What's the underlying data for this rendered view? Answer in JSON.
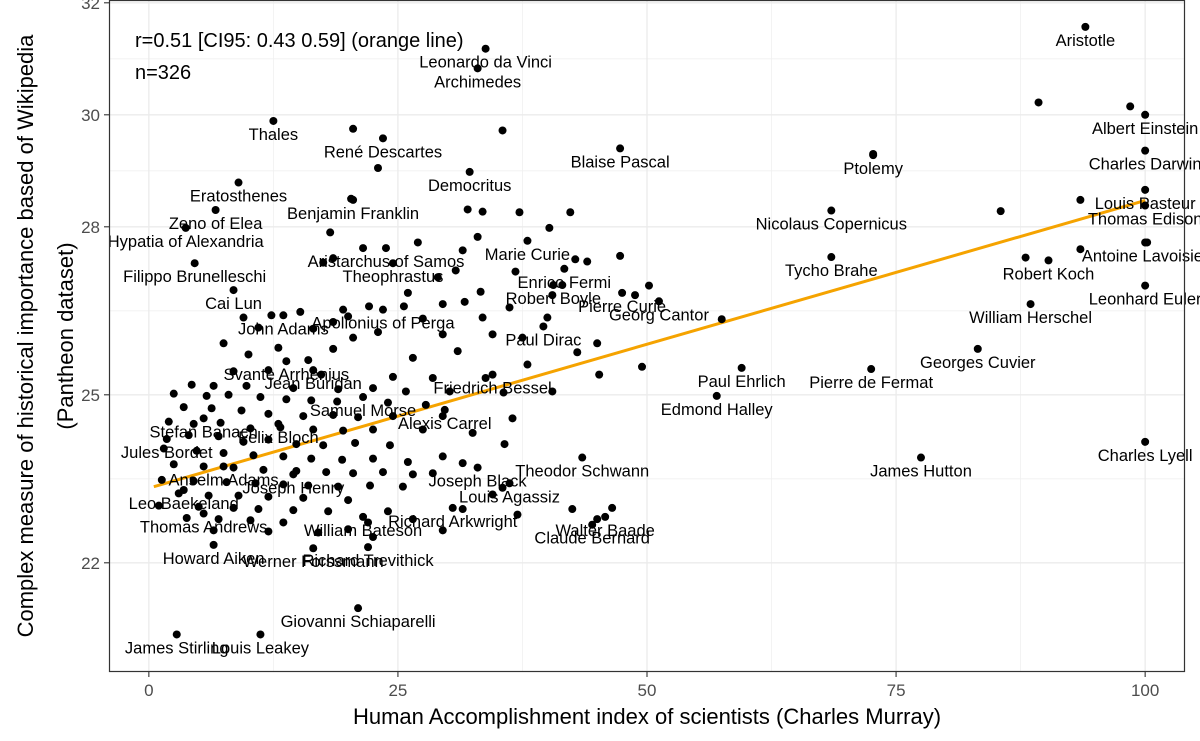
{
  "chart_data": {
    "type": "scatter",
    "title": "",
    "xlabel": "Human Accomplishment index of scientists (Charles Murray)",
    "ylabel": "Complex measure of historical importance based of Wikipedia (Pantheon dataset)",
    "ylabel_line1": "Complex measure of historical importance based of Wikipedia",
    "ylabel_line2": "(Pantheon dataset)",
    "xlim": [
      -4,
      104
    ],
    "ylim": [
      20.05,
      32.05
    ],
    "x_ticks": [
      0,
      25,
      50,
      75,
      100
    ],
    "x_tick_labels": [
      "0",
      "25",
      "50",
      "75",
      "100"
    ],
    "y_ticks": [
      22,
      25,
      28,
      30,
      32
    ],
    "y_tick_labels": [
      "22",
      "25",
      "28",
      "30",
      "32"
    ],
    "annotations": [
      "r=0.51 [CI95: 0.43 0.59] (orange line)",
      "n=326"
    ],
    "regression_line": {
      "color": "#f5a300",
      "x": [
        0.5,
        100
      ],
      "y": [
        23.36,
        28.47
      ]
    },
    "labeled_points": [
      {
        "label": "Aristotle",
        "x": 94,
        "y": 31.57
      },
      {
        "label": "Leonardo da Vinci",
        "x": 33.8,
        "y": 31.18
      },
      {
        "label": "Archimedes",
        "x": 33.0,
        "y": 30.83
      },
      {
        "label": "Albert Einstein",
        "x": 100,
        "y": 30.0
      },
      {
        "label": "Thales",
        "x": 12.5,
        "y": 29.89
      },
      {
        "label": "René Descartes",
        "x": 23.5,
        "y": 29.58
      },
      {
        "label": "Blaise Pascal",
        "x": 47.3,
        "y": 29.4
      },
      {
        "label": "Charles Darwin",
        "x": 100,
        "y": 29.36
      },
      {
        "label": "Ptolemy",
        "x": 72.7,
        "y": 29.28
      },
      {
        "label": "Democritus",
        "x": 32.2,
        "y": 28.98
      },
      {
        "label": "Eratosthenes",
        "x": 9.0,
        "y": 28.79
      },
      {
        "label": "Louis Pasteur",
        "x": 100,
        "y": 28.66
      },
      {
        "label": "Benjamin Franklin",
        "x": 20.5,
        "y": 28.48
      },
      {
        "label": "Nicolaus Copernicus",
        "x": 68.5,
        "y": 28.29
      },
      {
        "label": "Thomas Edison",
        "x": 100,
        "y": 28.38
      },
      {
        "label": "Zeno of Elea",
        "x": 6.7,
        "y": 28.3
      },
      {
        "label": "Marie Curie",
        "x": 38.0,
        "y": 27.75
      },
      {
        "label": "Hypatia of Alexandria",
        "x": 3.7,
        "y": 27.98
      },
      {
        "label": "Aristarchus of Samos",
        "x": 23.8,
        "y": 27.62
      },
      {
        "label": "Antoine Lavoisier",
        "x": 100,
        "y": 27.72
      },
      {
        "label": "Tycho Brahe",
        "x": 68.5,
        "y": 27.46
      },
      {
        "label": "Filippo Brunelleschi",
        "x": 4.6,
        "y": 27.35
      },
      {
        "label": "Theophrastus",
        "x": 24.5,
        "y": 27.35
      },
      {
        "label": "Enrico Fermi",
        "x": 41.7,
        "y": 27.25
      },
      {
        "label": "Robert Koch",
        "x": 90.3,
        "y": 27.4
      },
      {
        "label": "Robert Boyle",
        "x": 40.6,
        "y": 26.96
      },
      {
        "label": "Leonhard Euler",
        "x": 100,
        "y": 26.95
      },
      {
        "label": "Cai Lun",
        "x": 8.5,
        "y": 26.87
      },
      {
        "label": "Pierre Curie",
        "x": 47.5,
        "y": 26.82
      },
      {
        "label": "Apollonius of Perga",
        "x": 23.5,
        "y": 26.52
      },
      {
        "label": "William Herschel",
        "x": 88.5,
        "y": 26.62
      },
      {
        "label": "Georg Cantor",
        "x": 51.2,
        "y": 26.67
      },
      {
        "label": "John Adams",
        "x": 13.5,
        "y": 26.42
      },
      {
        "label": "Paul Dirac",
        "x": 39.6,
        "y": 26.22
      },
      {
        "label": "Georges Cuvier",
        "x": 83.2,
        "y": 25.82
      },
      {
        "label": "Svante Arrhenius",
        "x": 13.8,
        "y": 25.6
      },
      {
        "label": "Jean Buridan",
        "x": 16.5,
        "y": 25.44
      },
      {
        "label": "Friedrich Bessel",
        "x": 34.5,
        "y": 25.36
      },
      {
        "label": "Paul Ehrlich",
        "x": 59.5,
        "y": 25.48
      },
      {
        "label": "Pierre de Fermat",
        "x": 72.5,
        "y": 25.46
      },
      {
        "label": "Samuel Morse",
        "x": 21.5,
        "y": 24.96
      },
      {
        "label": "Stefan Banach",
        "x": 5.5,
        "y": 24.58
      },
      {
        "label": "Alexis Carrel",
        "x": 29.7,
        "y": 24.73
      },
      {
        "label": "Edmond Halley",
        "x": 57.0,
        "y": 24.98
      },
      {
        "label": "Felix Bloch",
        "x": 13.0,
        "y": 24.48
      },
      {
        "label": "Jules Bordet",
        "x": 1.8,
        "y": 24.21
      },
      {
        "label": "Charles Lyell",
        "x": 100,
        "y": 24.16
      },
      {
        "label": "James Hutton",
        "x": 77.5,
        "y": 23.88
      },
      {
        "label": "Theodor Schwann",
        "x": 43.5,
        "y": 23.88
      },
      {
        "label": "Joseph Black",
        "x": 33.0,
        "y": 23.7
      },
      {
        "label": "Anselm Adams",
        "x": 7.5,
        "y": 23.72
      },
      {
        "label": "Joseph Henry",
        "x": 14.5,
        "y": 23.58
      },
      {
        "label": "Louis Agassiz",
        "x": 36.2,
        "y": 23.42
      },
      {
        "label": "Leo Baekeland",
        "x": 3.5,
        "y": 23.3
      },
      {
        "label": "Richard Arkwright",
        "x": 30.5,
        "y": 22.98
      },
      {
        "label": "Thomas Andrews",
        "x": 5.5,
        "y": 22.88
      },
      {
        "label": "William Bateson",
        "x": 21.5,
        "y": 22.82
      },
      {
        "label": "Walter Baade",
        "x": 45.8,
        "y": 22.82
      },
      {
        "label": "Howard Aiken",
        "x": 6.5,
        "y": 22.32
      },
      {
        "label": "Claude Bernard",
        "x": 44.5,
        "y": 22.68
      },
      {
        "label": "Richard Trevithick",
        "x": 22.0,
        "y": 22.28
      },
      {
        "label": "Werner Forssmann",
        "x": 16.5,
        "y": 22.26
      },
      {
        "label": "Giovanni Schiaparelli",
        "x": 21.0,
        "y": 21.19
      },
      {
        "label": "James Stirling",
        "x": 2.8,
        "y": 20.72
      },
      {
        "label": "Louis Leakey",
        "x": 11.2,
        "y": 20.72
      }
    ],
    "unlabeled_points": [
      [
        89.3,
        30.22
      ],
      [
        98.5,
        30.15
      ],
      [
        72.7,
        29.3
      ],
      [
        85.5,
        28.28
      ],
      [
        93.5,
        28.48
      ],
      [
        93.5,
        27.6
      ],
      [
        100.2,
        27.72
      ],
      [
        88.0,
        27.45
      ],
      [
        57.5,
        26.35
      ],
      [
        50.2,
        26.95
      ],
      [
        35.5,
        29.72
      ],
      [
        20.5,
        29.75
      ],
      [
        23.0,
        29.05
      ],
      [
        20.3,
        28.5
      ],
      [
        32.0,
        28.31
      ],
      [
        33.5,
        28.27
      ],
      [
        37.2,
        28.26
      ],
      [
        42.3,
        28.26
      ],
      [
        40.2,
        27.98
      ],
      [
        33.0,
        27.82
      ],
      [
        27.0,
        27.72
      ],
      [
        47.3,
        27.48
      ],
      [
        42.8,
        27.42
      ],
      [
        18.2,
        27.9
      ],
      [
        21.5,
        27.62
      ],
      [
        31.5,
        27.58
      ],
      [
        18.5,
        27.44
      ],
      [
        17.5,
        27.36
      ],
      [
        44.0,
        27.38
      ],
      [
        30.8,
        27.22
      ],
      [
        36.8,
        27.2
      ],
      [
        29.0,
        27.1
      ],
      [
        41.5,
        26.96
      ],
      [
        33.3,
        26.84
      ],
      [
        26.0,
        26.82
      ],
      [
        40.5,
        26.78
      ],
      [
        48.8,
        26.78
      ],
      [
        29.5,
        26.62
      ],
      [
        31.7,
        26.66
      ],
      [
        36.2,
        26.56
      ],
      [
        25.6,
        26.58
      ],
      [
        22.1,
        26.58
      ],
      [
        19.5,
        26.52
      ],
      [
        15.2,
        26.48
      ],
      [
        20.0,
        26.4
      ],
      [
        12.3,
        26.42
      ],
      [
        18.5,
        26.3
      ],
      [
        9.5,
        26.38
      ],
      [
        27.5,
        26.36
      ],
      [
        33.5,
        26.38
      ],
      [
        40.0,
        26.38
      ],
      [
        11.0,
        26.2
      ],
      [
        16.5,
        26.18
      ],
      [
        20.5,
        26.02
      ],
      [
        23.0,
        26.12
      ],
      [
        29.5,
        26.08
      ],
      [
        34.5,
        26.08
      ],
      [
        37.5,
        26.02
      ],
      [
        45.0,
        25.92
      ],
      [
        7.5,
        25.92
      ],
      [
        13.0,
        25.84
      ],
      [
        18.5,
        25.82
      ],
      [
        31.0,
        25.78
      ],
      [
        43.0,
        25.76
      ],
      [
        10.0,
        25.72
      ],
      [
        16.0,
        25.62
      ],
      [
        26.5,
        25.66
      ],
      [
        38.0,
        25.54
      ],
      [
        49.5,
        25.5
      ],
      [
        8.5,
        25.42
      ],
      [
        12.0,
        25.44
      ],
      [
        17.3,
        25.36
      ],
      [
        24.5,
        25.32
      ],
      [
        28.5,
        25.3
      ],
      [
        33.8,
        25.3
      ],
      [
        45.2,
        25.36
      ],
      [
        4.3,
        25.18
      ],
      [
        6.5,
        25.16
      ],
      [
        9.8,
        25.16
      ],
      [
        14.5,
        25.12
      ],
      [
        19.0,
        25.1
      ],
      [
        22.5,
        25.12
      ],
      [
        25.8,
        25.06
      ],
      [
        30.2,
        25.06
      ],
      [
        35.6,
        25.04
      ],
      [
        40.5,
        25.06
      ],
      [
        2.5,
        25.02
      ],
      [
        5.8,
        24.98
      ],
      [
        8.0,
        25.0
      ],
      [
        11.2,
        24.96
      ],
      [
        13.8,
        24.92
      ],
      [
        16.3,
        24.9
      ],
      [
        18.9,
        24.88
      ],
      [
        24.0,
        24.86
      ],
      [
        27.8,
        24.82
      ],
      [
        3.5,
        24.78
      ],
      [
        6.3,
        24.76
      ],
      [
        9.3,
        24.72
      ],
      [
        12.0,
        24.66
      ],
      [
        15.5,
        24.62
      ],
      [
        18.5,
        24.64
      ],
      [
        21.0,
        24.6
      ],
      [
        24.5,
        24.62
      ],
      [
        29.5,
        24.62
      ],
      [
        36.5,
        24.58
      ],
      [
        2.0,
        24.52
      ],
      [
        4.5,
        24.48
      ],
      [
        7.2,
        24.5
      ],
      [
        10.2,
        24.4
      ],
      [
        13.2,
        24.42
      ],
      [
        16.5,
        24.38
      ],
      [
        19.5,
        24.36
      ],
      [
        22.5,
        24.38
      ],
      [
        27.5,
        24.38
      ],
      [
        4.0,
        24.28
      ],
      [
        7.0,
        24.26
      ],
      [
        9.5,
        24.16
      ],
      [
        12.0,
        24.2
      ],
      [
        14.8,
        24.12
      ],
      [
        17.5,
        24.1
      ],
      [
        20.7,
        24.14
      ],
      [
        24.2,
        24.1
      ],
      [
        32.5,
        24.32
      ],
      [
        35.7,
        24.12
      ],
      [
        1.5,
        24.04
      ],
      [
        4.8,
        24.0
      ],
      [
        7.5,
        23.96
      ],
      [
        10.5,
        23.92
      ],
      [
        13.5,
        23.9
      ],
      [
        16.3,
        23.86
      ],
      [
        19.4,
        23.84
      ],
      [
        22.5,
        23.86
      ],
      [
        26.0,
        23.8
      ],
      [
        29.5,
        23.9
      ],
      [
        31.5,
        23.78
      ],
      [
        2.5,
        23.76
      ],
      [
        5.5,
        23.72
      ],
      [
        8.5,
        23.7
      ],
      [
        11.5,
        23.66
      ],
      [
        14.8,
        23.64
      ],
      [
        17.8,
        23.62
      ],
      [
        20.5,
        23.6
      ],
      [
        23.5,
        23.62
      ],
      [
        26.5,
        23.58
      ],
      [
        28.5,
        23.6
      ],
      [
        1.3,
        23.48
      ],
      [
        4.5,
        23.46
      ],
      [
        7.8,
        23.44
      ],
      [
        10.7,
        23.42
      ],
      [
        13.5,
        23.4
      ],
      [
        16.0,
        23.38
      ],
      [
        19.0,
        23.36
      ],
      [
        22.2,
        23.38
      ],
      [
        25.5,
        23.36
      ],
      [
        35.5,
        23.34
      ],
      [
        3.0,
        23.24
      ],
      [
        6.0,
        23.2
      ],
      [
        9.0,
        23.2
      ],
      [
        12.0,
        23.18
      ],
      [
        15.5,
        23.16
      ],
      [
        20.0,
        23.12
      ],
      [
        34.5,
        23.22
      ],
      [
        1.0,
        23.02
      ],
      [
        5.0,
        23.0
      ],
      [
        8.5,
        22.98
      ],
      [
        11.0,
        22.96
      ],
      [
        14.5,
        22.94
      ],
      [
        18.0,
        22.92
      ],
      [
        24.0,
        22.92
      ],
      [
        31.5,
        22.96
      ],
      [
        3.8,
        22.8
      ],
      [
        7.0,
        22.78
      ],
      [
        10.2,
        22.76
      ],
      [
        13.5,
        22.72
      ],
      [
        22.0,
        22.72
      ],
      [
        26.5,
        22.78
      ],
      [
        42.5,
        22.96
      ],
      [
        46.5,
        22.98
      ],
      [
        6.5,
        22.58
      ],
      [
        12.0,
        22.56
      ],
      [
        17.0,
        22.54
      ],
      [
        20.0,
        22.6
      ],
      [
        29.5,
        22.58
      ],
      [
        37.0,
        22.86
      ],
      [
        22.5,
        22.46
      ],
      [
        45.0,
        22.78
      ]
    ]
  }
}
